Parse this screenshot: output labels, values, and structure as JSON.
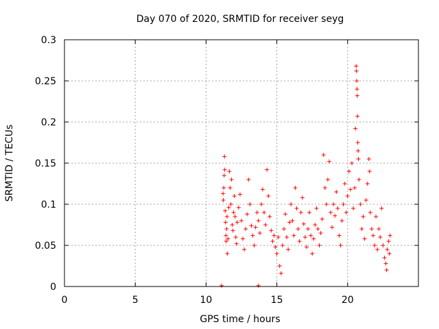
{
  "chart_data": {
    "type": "scatter",
    "title": "Day 070 of 2020, SRMTID for receiver seyg",
    "xlabel": "GPS time / hours",
    "ylabel": "SRMTID / TECUs",
    "xlim": [
      0,
      25
    ],
    "ylim": [
      0,
      0.3
    ],
    "x_ticks": [
      0,
      5,
      10,
      15,
      20
    ],
    "x_tick_labels": [
      "0",
      "5",
      "10",
      "15",
      "20"
    ],
    "y_ticks": [
      0,
      0.05,
      0.1,
      0.15,
      0.2,
      0.25,
      0.3
    ],
    "y_tick_labels": [
      "0",
      "0.05",
      "0.1",
      "0.15",
      "0.2",
      "0.25",
      "0.3"
    ],
    "grid": true,
    "marker": "plus",
    "color": "#ff0000",
    "series": [
      {
        "name": "SRMTID",
        "points": [
          [
            11.1,
            0.001
          ],
          [
            13.7,
            0.001
          ],
          [
            11.2,
            0.113
          ],
          [
            11.22,
            0.105
          ],
          [
            11.25,
            0.12
          ],
          [
            11.28,
            0.135
          ],
          [
            11.3,
            0.158
          ],
          [
            11.32,
            0.142
          ],
          [
            11.35,
            0.092
          ],
          [
            11.38,
            0.078
          ],
          [
            11.4,
            0.062
          ],
          [
            11.42,
            0.055
          ],
          [
            11.45,
            0.07
          ],
          [
            11.48,
            0.085
          ],
          [
            11.5,
            0.04
          ],
          [
            11.55,
            0.058
          ],
          [
            11.6,
            0.096
          ],
          [
            11.65,
            0.14
          ],
          [
            11.7,
            0.12
          ],
          [
            11.75,
            0.1
          ],
          [
            11.8,
            0.13
          ],
          [
            11.85,
            0.075
          ],
          [
            11.9,
            0.068
          ],
          [
            11.95,
            0.09
          ],
          [
            12.0,
            0.11
          ],
          [
            12.05,
            0.085
          ],
          [
            12.1,
            0.06
          ],
          [
            12.15,
            0.052
          ],
          [
            12.2,
            0.078
          ],
          [
            12.3,
            0.096
          ],
          [
            12.4,
            0.112
          ],
          [
            12.5,
            0.08
          ],
          [
            12.6,
            0.058
          ],
          [
            12.7,
            0.045
          ],
          [
            12.8,
            0.07
          ],
          [
            12.9,
            0.088
          ],
          [
            13.0,
            0.13
          ],
          [
            13.1,
            0.1
          ],
          [
            13.2,
            0.074
          ],
          [
            13.3,
            0.062
          ],
          [
            13.4,
            0.05
          ],
          [
            13.5,
            0.072
          ],
          [
            13.6,
            0.09
          ],
          [
            13.7,
            0.08
          ],
          [
            13.8,
            0.065
          ],
          [
            13.9,
            0.1
          ],
          [
            14.0,
            0.118
          ],
          [
            14.1,
            0.09
          ],
          [
            14.2,
            0.075
          ],
          [
            14.3,
            0.142
          ],
          [
            14.4,
            0.11
          ],
          [
            14.5,
            0.085
          ],
          [
            14.6,
            0.068
          ],
          [
            14.7,
            0.055
          ],
          [
            14.8,
            0.062
          ],
          [
            14.9,
            0.048
          ],
          [
            15.0,
            0.04
          ],
          [
            15.1,
            0.06
          ],
          [
            15.2,
            0.025
          ],
          [
            15.3,
            0.016
          ],
          [
            15.4,
            0.05
          ],
          [
            15.5,
            0.07
          ],
          [
            15.6,
            0.088
          ],
          [
            15.7,
            0.06
          ],
          [
            15.8,
            0.045
          ],
          [
            15.9,
            0.078
          ],
          [
            16.0,
            0.1
          ],
          [
            16.1,
            0.08
          ],
          [
            16.2,
            0.062
          ],
          [
            16.3,
            0.12
          ],
          [
            16.4,
            0.095
          ],
          [
            16.5,
            0.07
          ],
          [
            16.6,
            0.055
          ],
          [
            16.7,
            0.09
          ],
          [
            16.8,
            0.108
          ],
          [
            16.9,
            0.076
          ],
          [
            17.0,
            0.06
          ],
          [
            17.1,
            0.048
          ],
          [
            17.2,
            0.07
          ],
          [
            17.3,
            0.09
          ],
          [
            17.4,
            0.062
          ],
          [
            17.5,
            0.04
          ],
          [
            17.6,
            0.058
          ],
          [
            17.7,
            0.075
          ],
          [
            17.8,
            0.095
          ],
          [
            17.9,
            0.07
          ],
          [
            18.0,
            0.05
          ],
          [
            18.1,
            0.065
          ],
          [
            18.2,
            0.082
          ],
          [
            18.3,
            0.16
          ],
          [
            18.4,
            0.12
          ],
          [
            18.5,
            0.1
          ],
          [
            18.6,
            0.13
          ],
          [
            18.7,
            0.152
          ],
          [
            18.8,
            0.09
          ],
          [
            18.9,
            0.072
          ],
          [
            19.0,
            0.1
          ],
          [
            19.1,
            0.086
          ],
          [
            19.2,
            0.115
          ],
          [
            19.3,
            0.095
          ],
          [
            19.4,
            0.062
          ],
          [
            19.5,
            0.05
          ],
          [
            19.6,
            0.08
          ],
          [
            19.7,
            0.1
          ],
          [
            19.8,
            0.125
          ],
          [
            19.9,
            0.09
          ],
          [
            20.0,
            0.11
          ],
          [
            20.1,
            0.14
          ],
          [
            20.2,
            0.118
          ],
          [
            20.3,
            0.15
          ],
          [
            20.4,
            0.095
          ],
          [
            20.5,
            0.12
          ],
          [
            20.55,
            0.192
          ],
          [
            20.6,
            0.268
          ],
          [
            20.62,
            0.262
          ],
          [
            20.64,
            0.25
          ],
          [
            20.66,
            0.24
          ],
          [
            20.68,
            0.232
          ],
          [
            20.7,
            0.207
          ],
          [
            20.72,
            0.175
          ],
          [
            20.74,
            0.165
          ],
          [
            20.76,
            0.155
          ],
          [
            20.8,
            0.13
          ],
          [
            20.9,
            0.1
          ],
          [
            21.0,
            0.07
          ],
          [
            21.1,
            0.085
          ],
          [
            21.2,
            0.058
          ],
          [
            21.3,
            0.105
          ],
          [
            21.4,
            0.125
          ],
          [
            21.5,
            0.155
          ],
          [
            21.55,
            0.14
          ],
          [
            21.6,
            0.09
          ],
          [
            21.7,
            0.07
          ],
          [
            21.8,
            0.062
          ],
          [
            21.9,
            0.05
          ],
          [
            22.0,
            0.085
          ],
          [
            22.1,
            0.045
          ],
          [
            22.2,
            0.07
          ],
          [
            22.3,
            0.06
          ],
          [
            22.4,
            0.095
          ],
          [
            22.5,
            0.05
          ],
          [
            22.6,
            0.035
          ],
          [
            22.7,
            0.028
          ],
          [
            22.75,
            0.02
          ],
          [
            22.8,
            0.045
          ],
          [
            22.9,
            0.055
          ],
          [
            22.95,
            0.04
          ],
          [
            23.0,
            0.062
          ]
        ]
      }
    ]
  }
}
